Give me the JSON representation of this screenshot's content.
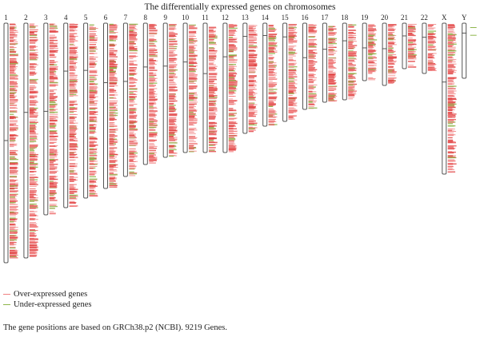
{
  "title": "The differentially expressed genes on chromosomes",
  "legend": [
    {
      "label": "Over-expressed genes",
      "color": "#f08080"
    },
    {
      "label": "Under-expressed genes",
      "color": "#8db54a"
    }
  ],
  "footer": "The gene positions are based on GRCh38.p2 (NCBI). 9219 Genes.",
  "colors": {
    "over": "#f07878",
    "under": "#8db54a",
    "outline": "#555555",
    "band_dark": "#e04545"
  },
  "chart_data": {
    "type": "ideogram",
    "assembly": "GRCh38.p2",
    "total_genes": 9219,
    "chromosomes": [
      {
        "name": "1",
        "length_rel": 1.0,
        "centromere": 0.49
      },
      {
        "name": "2",
        "length_rel": 0.98,
        "centromere": 0.38
      },
      {
        "name": "3",
        "length_rel": 0.8,
        "centromere": 0.46
      },
      {
        "name": "4",
        "length_rel": 0.77,
        "centromere": 0.26
      },
      {
        "name": "5",
        "length_rel": 0.73,
        "centromere": 0.27
      },
      {
        "name": "6",
        "length_rel": 0.69,
        "centromere": 0.36
      },
      {
        "name": "7",
        "length_rel": 0.64,
        "centromere": 0.38
      },
      {
        "name": "8",
        "length_rel": 0.59,
        "centromere": 0.31
      },
      {
        "name": "9",
        "length_rel": 0.56,
        "centromere": 0.32
      },
      {
        "name": "10",
        "length_rel": 0.54,
        "centromere": 0.3
      },
      {
        "name": "11",
        "length_rel": 0.54,
        "centromere": 0.39
      },
      {
        "name": "12",
        "length_rel": 0.54,
        "centromere": 0.26
      },
      {
        "name": "13",
        "length_rel": 0.46,
        "centromere": 0.12
      },
      {
        "name": "14",
        "length_rel": 0.43,
        "centromere": 0.12
      },
      {
        "name": "15",
        "length_rel": 0.41,
        "centromere": 0.14
      },
      {
        "name": "16",
        "length_rel": 0.36,
        "centromere": 0.4
      },
      {
        "name": "17",
        "length_rel": 0.33,
        "centromere": 0.33
      },
      {
        "name": "18",
        "length_rel": 0.32,
        "centromere": 0.23
      },
      {
        "name": "19",
        "length_rel": 0.24,
        "centromere": 0.43
      },
      {
        "name": "20",
        "length_rel": 0.26,
        "centromere": 0.41
      },
      {
        "name": "21",
        "length_rel": 0.19,
        "centromere": 0.28
      },
      {
        "name": "22",
        "length_rel": 0.21,
        "centromere": 0.28
      },
      {
        "name": "X",
        "length_rel": 0.63,
        "centromere": 0.39
      },
      {
        "name": "Y",
        "length_rel": 0.23,
        "centromere": 0.18
      }
    ]
  }
}
